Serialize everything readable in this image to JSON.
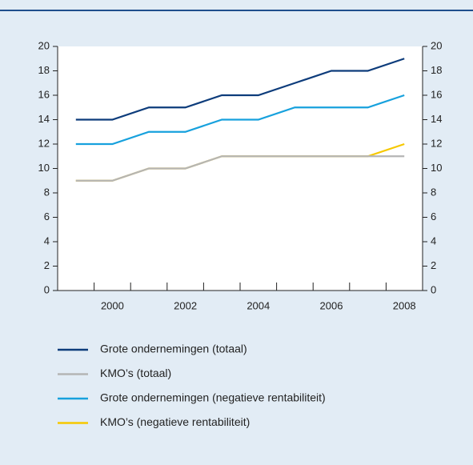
{
  "chart_data": {
    "type": "line",
    "categories": [
      null,
      "2000",
      null,
      "2002",
      null,
      "2004",
      null,
      "2006",
      null,
      "2008"
    ],
    "series": [
      {
        "name": "Grote ondernemingen (totaal)",
        "color": "#0d3c7b",
        "values": [
          14,
          14,
          15,
          15,
          16,
          16,
          17,
          18,
          18,
          19
        ]
      },
      {
        "name": "KMO’s (totaal)",
        "color": "#b5b5b5",
        "values": [
          9,
          9,
          10,
          10,
          11,
          11,
          11,
          11,
          11,
          11
        ]
      },
      {
        "name": "Grote ondernemingen (negatieve rentabiliteit)",
        "color": "#17a1dd",
        "values": [
          12,
          12,
          13,
          13,
          14,
          14,
          15,
          15,
          15,
          16
        ]
      },
      {
        "name": "KMO’s (negatieve rentabiliteit)",
        "color": "#f6c800",
        "values": [
          9,
          9,
          10,
          10,
          11,
          11,
          11,
          11,
          11,
          12
        ]
      }
    ],
    "ylim": [
      0,
      20
    ],
    "yticks": [
      0,
      2,
      4,
      6,
      8,
      10,
      12,
      14,
      16,
      18,
      20
    ],
    "y2lim": [
      0,
      20
    ],
    "y2ticks": [
      0,
      2,
      4,
      6,
      8,
      10,
      12,
      14,
      16,
      18,
      20
    ],
    "grid": false
  }
}
